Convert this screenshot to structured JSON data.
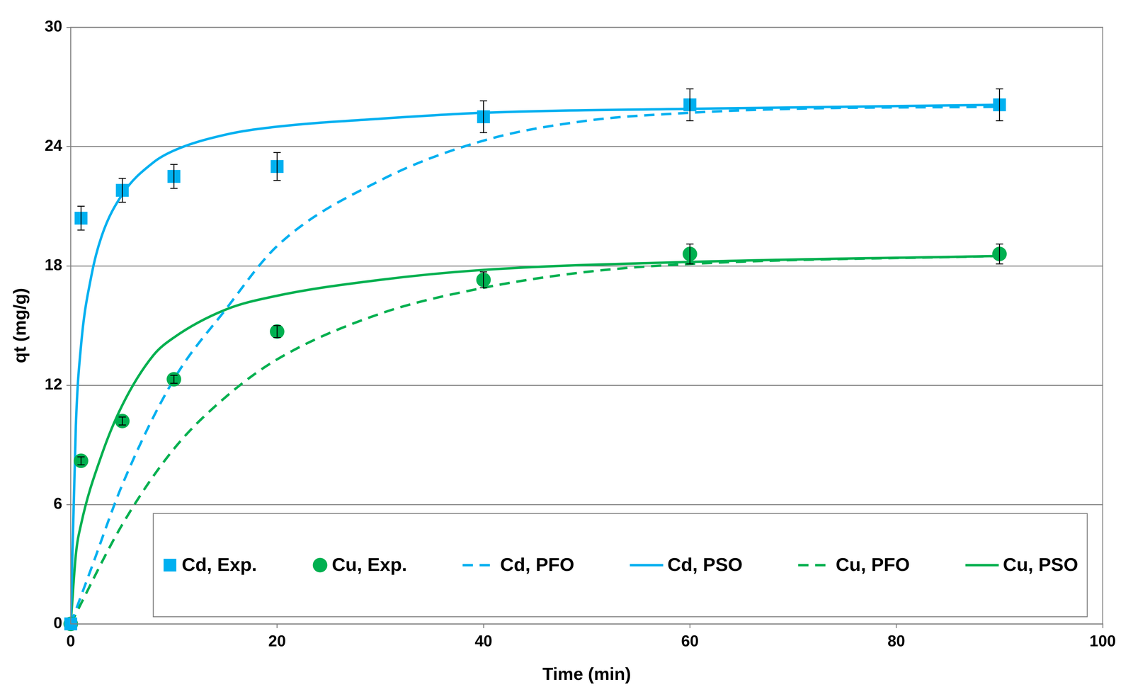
{
  "chart_data": {
    "type": "scatter",
    "xlabel": "Time (min)",
    "ylabel": "qt (mg/g)",
    "xlim": [
      0,
      100
    ],
    "xticks": [
      0,
      20,
      40,
      60,
      80,
      100
    ],
    "ylim": [
      0,
      30
    ],
    "yticks": [
      0,
      6,
      12,
      18,
      24,
      30
    ],
    "grid": "y",
    "legend": "bottom",
    "series": [
      {
        "name": "Cd, Exp.",
        "color": "#00B0F0",
        "type": "scatter",
        "marker": "square",
        "x": [
          0,
          1,
          5,
          10,
          20,
          40,
          60,
          90
        ],
        "values": [
          0,
          20.4,
          21.8,
          22.5,
          23.0,
          25.5,
          26.1,
          26.1
        ],
        "errors": [
          0,
          0.6,
          0.6,
          0.6,
          0.7,
          0.8,
          0.8,
          0.8
        ]
      },
      {
        "name": "Cu, Exp.",
        "color": "#00B050",
        "type": "scatter",
        "marker": "circle",
        "x": [
          0,
          1,
          5,
          10,
          20,
          40,
          60,
          90
        ],
        "values": [
          0,
          8.2,
          10.2,
          12.3,
          14.7,
          17.3,
          18.6,
          18.6
        ],
        "errors": [
          0,
          0.2,
          0.2,
          0.2,
          0.3,
          0.4,
          0.5,
          0.5
        ]
      },
      {
        "name": "Cd, PFO",
        "color": "#00B0F0",
        "type": "line",
        "line_style": "dashed",
        "x": [
          0,
          2,
          5,
          10,
          15,
          20,
          30,
          40,
          50,
          60,
          70,
          90
        ],
        "values": [
          0,
          2.8,
          7.0,
          12.3,
          15.8,
          19.0,
          22.3,
          24.3,
          25.3,
          25.7,
          25.9,
          26.0
        ]
      },
      {
        "name": "Cd, PSO",
        "color": "#00B0F0",
        "type": "line",
        "line_style": "solid",
        "x": [
          0,
          0.5,
          1,
          2,
          3,
          5,
          8,
          10,
          15,
          20,
          30,
          40,
          60,
          90
        ],
        "values": [
          0,
          10.0,
          14.0,
          17.5,
          19.5,
          21.6,
          23.2,
          23.8,
          24.6,
          25.0,
          25.4,
          25.7,
          25.9,
          26.1
        ]
      },
      {
        "name": "Cu, PFO",
        "color": "#00B050",
        "type": "line",
        "line_style": "dashed",
        "x": [
          0,
          5,
          10,
          15,
          20,
          30,
          40,
          50,
          60,
          90
        ],
        "values": [
          0,
          5.0,
          8.8,
          11.4,
          13.3,
          15.6,
          16.9,
          17.7,
          18.1,
          18.5
        ]
      },
      {
        "name": "Cu, PSO",
        "color": "#00B050",
        "type": "line",
        "line_style": "solid",
        "x": [
          0,
          0.5,
          1,
          3,
          5,
          8,
          10,
          15,
          20,
          30,
          40,
          60,
          90
        ],
        "values": [
          0,
          3.5,
          5.0,
          8.5,
          11.0,
          13.5,
          14.4,
          15.8,
          16.5,
          17.3,
          17.8,
          18.2,
          18.5
        ]
      }
    ]
  }
}
